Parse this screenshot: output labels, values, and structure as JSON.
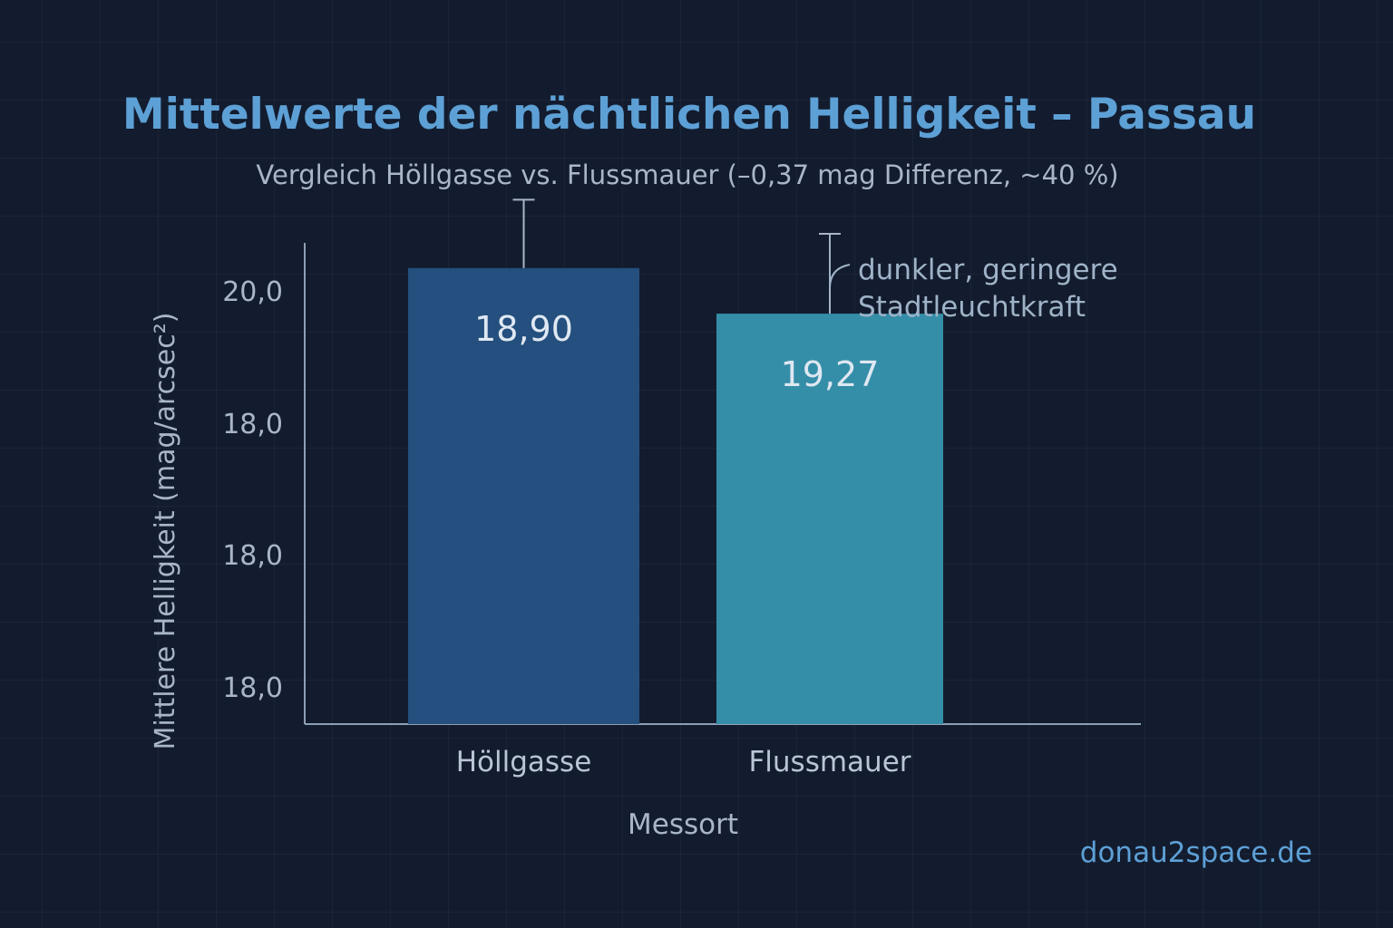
{
  "chart_data": {
    "type": "bar",
    "title": "Mittelwerte der nächtlichen Helligkeit – Passau",
    "subtitle": "Vergleich Höllgasse vs. Flussmauer (–0,37 mag Differenz, ~40 %)",
    "xlabel": "Messort",
    "ylabel": "Mittlere Helligkeit (mag/arcsec²)",
    "y_tick_labels": [
      "20,0",
      "18,0",
      "18,0",
      "18,0"
    ],
    "categories": [
      "Höllgasse",
      "Flussmauer"
    ],
    "values": [
      18.9,
      19.27
    ],
    "value_labels": [
      "18,90",
      "19,27"
    ],
    "bar_colors": [
      "#244f7e",
      "#358ea8"
    ],
    "bar_heights_rel": [
      0.8,
      0.72
    ],
    "error_upper_rel": [
      0.92,
      0.86
    ],
    "annotation": {
      "target_bar": 1,
      "lines": [
        "dunkler, geringere",
        "Stadtleuchtkraft"
      ]
    },
    "grid": true,
    "legend": "none"
  },
  "credit": "donau2space.de",
  "colors": {
    "background": "#131c2e",
    "accent": "#5da0d6",
    "axis": "#8ea0b6"
  }
}
